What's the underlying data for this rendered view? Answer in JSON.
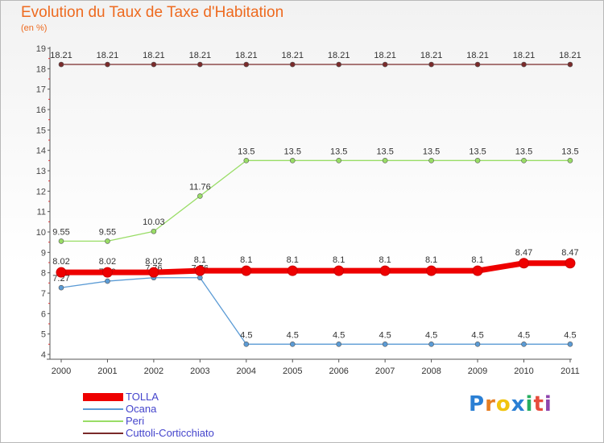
{
  "title": "Evolution du Taux de Taxe d'Habitation",
  "subtitle": "(en %)",
  "logo_text": "Proxiti",
  "chart_data": {
    "type": "line",
    "title": "Evolution du Taux de Taxe d'Habitation",
    "ylabel": "(en %)",
    "x": [
      "2000",
      "2001",
      "2002",
      "2003",
      "2004",
      "2005",
      "2006",
      "2007",
      "2008",
      "2009",
      "2010",
      "2011"
    ],
    "ylim": [
      4,
      19
    ],
    "yticks": [
      "4",
      "5",
      "6",
      "7",
      "8",
      "9",
      "10",
      "11",
      "12",
      "13",
      "14",
      "15",
      "16",
      "17",
      "18",
      "19"
    ],
    "grid": false,
    "legend_position": "bottom-left",
    "series": [
      {
        "name": "TOLLA",
        "color": "#ee0000",
        "values": [
          8.02,
          8.02,
          8.02,
          8.1,
          8.1,
          8.1,
          8.1,
          8.1,
          8.1,
          8.1,
          8.47,
          8.47
        ],
        "labels": [
          "8.02",
          "8.02",
          "8.02",
          "8.1",
          "8.1",
          "8.1",
          "8.1",
          "8.1",
          "8.1",
          "8.1",
          "8.47",
          "8.47"
        ]
      },
      {
        "name": "Ocana",
        "color": "#5b9bd5",
        "values": [
          7.27,
          7.59,
          7.76,
          7.76,
          4.5,
          4.5,
          4.5,
          4.5,
          4.5,
          4.5,
          4.5,
          4.5
        ],
        "labels": [
          "7.27",
          "7.59",
          "7.76",
          "7.76",
          "4.5",
          "4.5",
          "4.5",
          "4.5",
          "4.5",
          "4.5",
          "4.5",
          "4.5"
        ]
      },
      {
        "name": "Peri",
        "color": "#99dd66",
        "values": [
          9.55,
          9.55,
          10.03,
          11.76,
          13.5,
          13.5,
          13.5,
          13.5,
          13.5,
          13.5,
          13.5,
          13.5
        ],
        "labels": [
          "9.55",
          "9.55",
          "10.03",
          "11.76",
          "13.5",
          "13.5",
          "13.5",
          "13.5",
          "13.5",
          "13.5",
          "13.5",
          "13.5"
        ]
      },
      {
        "name": "Cuttoli-Corticchiato",
        "color": "#7a2a2a",
        "values": [
          18.21,
          18.21,
          18.21,
          18.21,
          18.21,
          18.21,
          18.21,
          18.21,
          18.21,
          18.21,
          18.21,
          18.21
        ],
        "labels": [
          "18.21",
          "18.21",
          "18.21",
          "18.21",
          "18.21",
          "18.21",
          "18.21",
          "18.21",
          "18.21",
          "18.21",
          "18.21",
          "18.21"
        ]
      }
    ]
  }
}
